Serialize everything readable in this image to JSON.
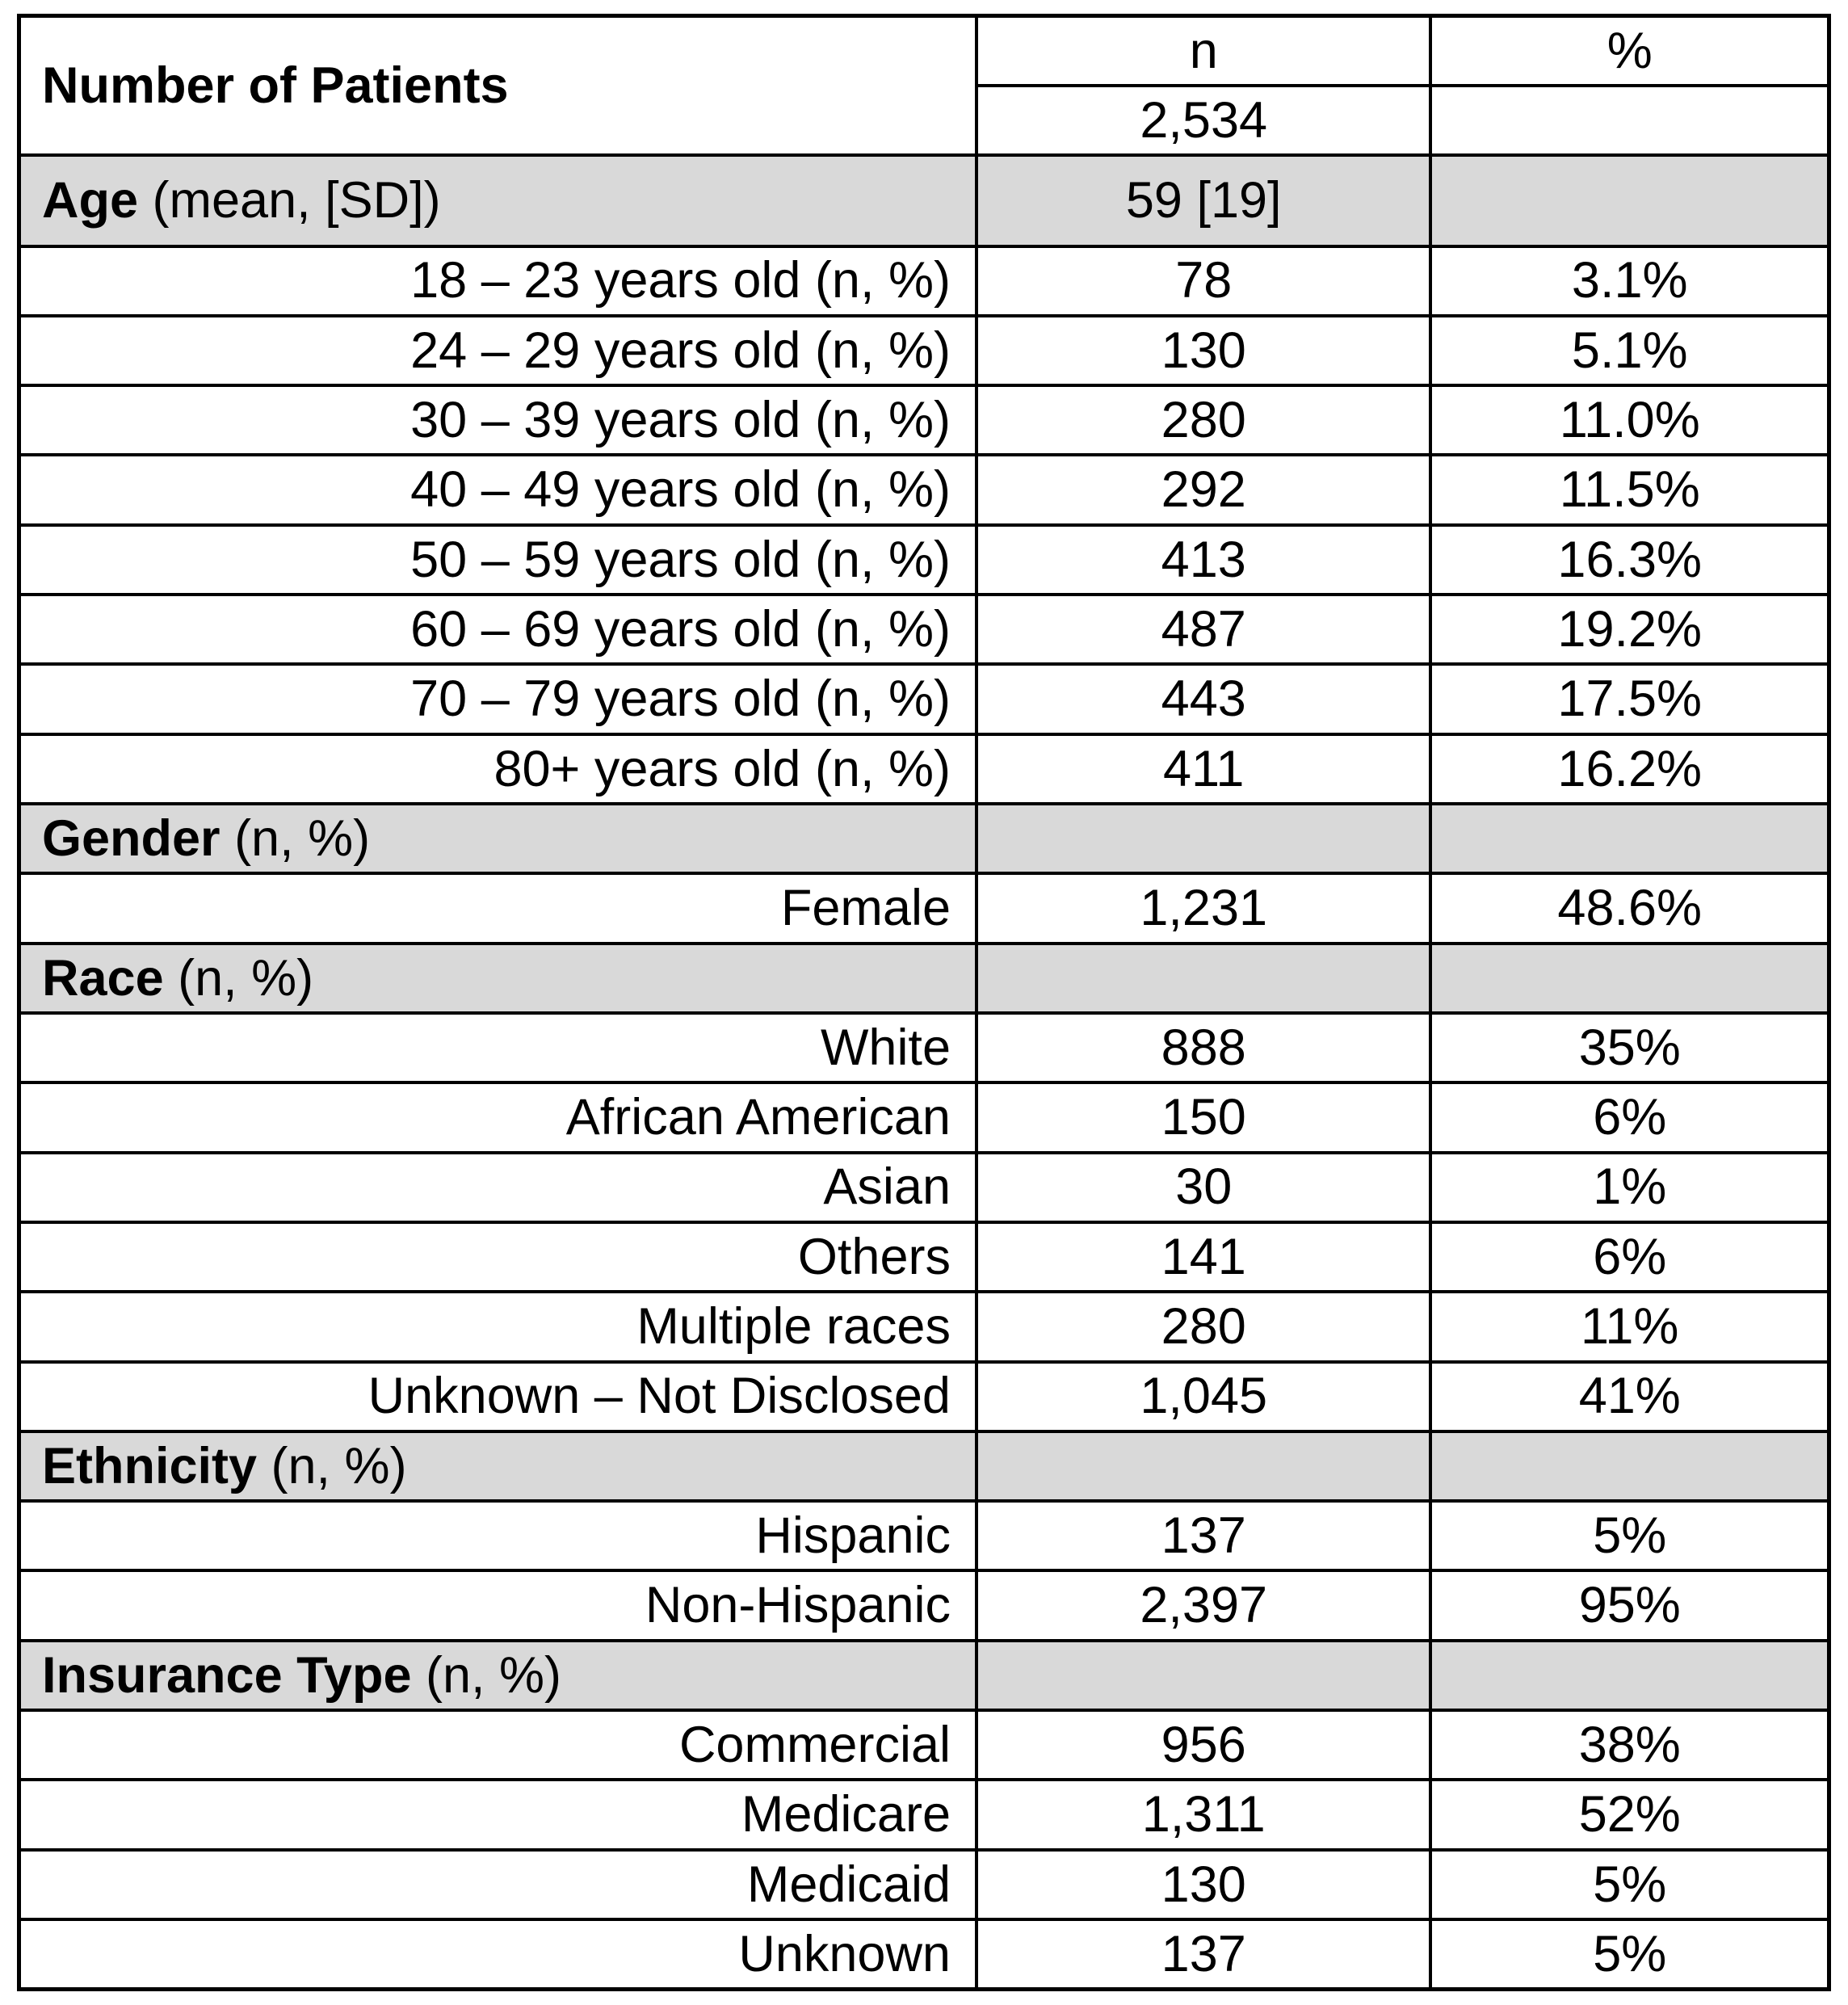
{
  "colors": {
    "background": "#ffffff",
    "section_row_bg": "#d9d9d9",
    "border": "#000000",
    "text": "#000000"
  },
  "table": {
    "col_headers": {
      "n": "n",
      "pct": "%"
    },
    "patients": {
      "label": "Number of Patients",
      "n": "2,534",
      "pct": ""
    },
    "sections": [
      {
        "name": "Age",
        "suffix": " (mean, [SD])",
        "n": "59 [19]",
        "pct": "",
        "tall": true,
        "items": [
          {
            "label": "18 – 23 years old (n, %)",
            "n": "78",
            "pct": "3.1%"
          },
          {
            "label": "24 – 29 years old (n, %)",
            "n": "130",
            "pct": "5.1%"
          },
          {
            "label": "30 – 39 years old (n, %)",
            "n": "280",
            "pct": "11.0%"
          },
          {
            "label": "40 – 49 years old (n, %)",
            "n": "292",
            "pct": "11.5%"
          },
          {
            "label": "50 – 59 years old (n, %)",
            "n": "413",
            "pct": "16.3%"
          },
          {
            "label": "60 – 69 years old (n, %)",
            "n": "487",
            "pct": "19.2%"
          },
          {
            "label": "70 – 79 years old (n, %)",
            "n": "443",
            "pct": "17.5%"
          },
          {
            "label": "80+ years old (n, %)",
            "n": "411",
            "pct": "16.2%"
          }
        ]
      },
      {
        "name": "Gender",
        "suffix": " (n, %)",
        "n": "",
        "pct": "",
        "tall": false,
        "items": [
          {
            "label": "Female",
            "n": "1,231",
            "pct": "48.6%"
          }
        ]
      },
      {
        "name": "Race",
        "suffix": " (n, %)",
        "n": "",
        "pct": "",
        "tall": false,
        "items": [
          {
            "label": "White",
            "n": "888",
            "pct": "35%"
          },
          {
            "label": "African American",
            "n": "150",
            "pct": "6%"
          },
          {
            "label": "Asian",
            "n": "30",
            "pct": "1%"
          },
          {
            "label": "Others",
            "n": "141",
            "pct": "6%"
          },
          {
            "label": "Multiple races",
            "n": "280",
            "pct": "11%"
          },
          {
            "label": "Unknown – Not Disclosed",
            "n": "1,045",
            "pct": "41%"
          }
        ]
      },
      {
        "name": "Ethnicity",
        "suffix": " (n, %)",
        "n": "",
        "pct": "",
        "tall": false,
        "items": [
          {
            "label": "Hispanic",
            "n": "137",
            "pct": "5%"
          },
          {
            "label": "Non-Hispanic",
            "n": "2,397",
            "pct": "95%"
          }
        ]
      },
      {
        "name": "Insurance Type",
        "suffix": " (n, %)",
        "n": "",
        "pct": "",
        "tall": false,
        "items": [
          {
            "label": "Commercial",
            "n": "956",
            "pct": "38%"
          },
          {
            "label": "Medicare",
            "n": "1,311",
            "pct": "52%"
          },
          {
            "label": "Medicaid",
            "n": "130",
            "pct": "5%"
          },
          {
            "label": "Unknown",
            "n": "137",
            "pct": "5%"
          }
        ]
      }
    ]
  }
}
